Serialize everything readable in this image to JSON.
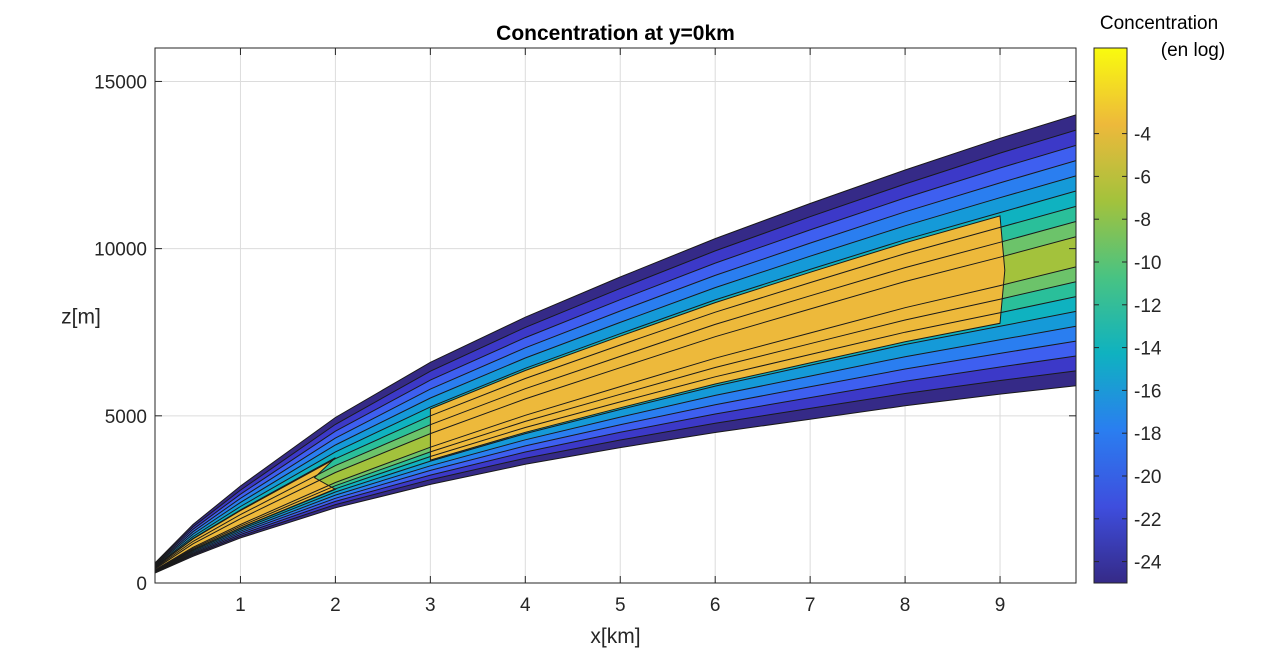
{
  "chart_data": {
    "type": "contour",
    "title": "Concentration at y=0km",
    "xlabel": "x[km]",
    "ylabel": "z[m]",
    "xlim": [
      0.1,
      9.8
    ],
    "ylim": [
      0,
      16000
    ],
    "xticks": [
      1,
      2,
      3,
      4,
      5,
      6,
      7,
      8,
      9
    ],
    "yticks": [
      0,
      5000,
      10000,
      15000
    ],
    "grid": true,
    "colorbar": {
      "title_line1": "Concentration",
      "title_line2": "(en log)",
      "range": [
        -25,
        0
      ],
      "ticks": [
        -4,
        -6,
        -8,
        -10,
        -12,
        -14,
        -16,
        -18,
        -20,
        -22,
        -24
      ],
      "colormap": "parula"
    },
    "plume": {
      "x": [
        0.1,
        0.5,
        1,
        2,
        3,
        4,
        5,
        6,
        7,
        8,
        9,
        9.8
      ],
      "upper_z": [
        600,
        1750,
        2900,
        4950,
        6600,
        7950,
        9150,
        10300,
        11350,
        12350,
        13300,
        14000
      ],
      "center_z": [
        400,
        1100,
        1800,
        3100,
        4200,
        5200,
        6100,
        7000,
        7800,
        8600,
        9300,
        9900
      ],
      "lower_z": [
        300,
        800,
        1350,
        2250,
        2950,
        3550,
        4050,
        4500,
        4900,
        5300,
        5650,
        5900
      ]
    },
    "contour_levels": [
      -24,
      -22,
      -20,
      -18,
      -16,
      -14,
      -12,
      -10,
      -8,
      -6
    ],
    "band_colors": [
      "#352a87",
      "#3c39c8",
      "#3e5ff0",
      "#2a7ef0",
      "#159ad8",
      "#0fb2c0",
      "#2abf9a",
      "#6cc36a",
      "#a3c23c",
      "#edb93b"
    ],
    "colorbar_gradient": [
      "#352a87",
      "#3e4ede",
      "#2a7ef0",
      "#0fb2c0",
      "#48c383",
      "#a3c23c",
      "#edb93b",
      "#f9fb0e"
    ]
  }
}
